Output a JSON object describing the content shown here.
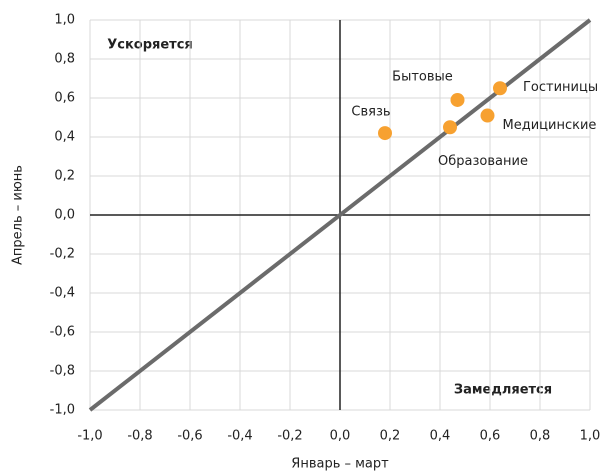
{
  "chart_data": {
    "type": "scatter",
    "x_label": "Январь – март",
    "y_label": "Апрель – июнь",
    "annotations": [
      "Ускоряется",
      "Замедляется"
    ],
    "labels": [
      "Связь",
      "Бытовые",
      "Гостиницы",
      "Медицинские",
      "Образование"
    ],
    "x": [
      0.18,
      0.47,
      0.64,
      0.59,
      0.44
    ],
    "y": [
      0.42,
      0.59,
      0.65,
      0.51,
      0.45
    ],
    "color": "#f7a130",
    "xlim": [
      -1.0,
      1.0
    ],
    "ylim": [
      -1.0,
      1.0
    ],
    "xticks": [
      {
        "value": -1.0,
        "label": "-1,0"
      },
      {
        "value": -0.8,
        "label": "-0,8"
      },
      {
        "value": -0.6,
        "label": "-0,6"
      },
      {
        "value": -0.4,
        "label": "-0,4"
      },
      {
        "value": -0.2,
        "label": "-0,2"
      },
      {
        "value": 0,
        "label": "0,0"
      },
      {
        "value": 0.2,
        "label": "0,2"
      },
      {
        "value": 0.4,
        "label": "0,4"
      },
      {
        "value": 0.6,
        "label": "0,6"
      },
      {
        "value": 0.8,
        "label": "0,8"
      },
      {
        "value": 1.0,
        "label": "1,0"
      }
    ],
    "yticks": [
      {
        "value": -1.0,
        "label": "-1,0"
      },
      {
        "value": -0.8,
        "label": "-0,8"
      },
      {
        "value": -0.6,
        "label": "-0,6"
      },
      {
        "value": -0.4,
        "label": "-0,4"
      },
      {
        "value": -0.2,
        "label": "-0,2"
      },
      {
        "value": 0,
        "label": "0,0"
      },
      {
        "value": 0.2,
        "label": "0,2"
      },
      {
        "value": 0.4,
        "label": "0,4"
      },
      {
        "value": 0.6,
        "label": "0,6"
      },
      {
        "value": 0.8,
        "label": "0,8"
      },
      {
        "value": 1.0,
        "label": "1,0"
      }
    ],
    "grid": true
  }
}
